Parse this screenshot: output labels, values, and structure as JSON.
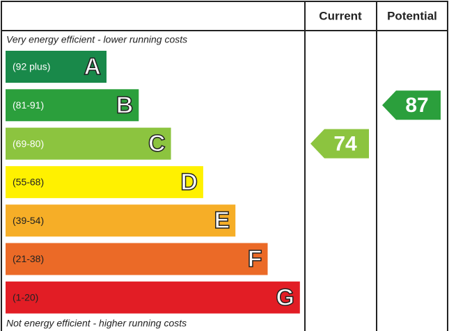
{
  "header": {
    "current": "Current",
    "potential": "Potential"
  },
  "top_note": "Very energy efficient - lower running costs",
  "bottom_note": "Not energy efficient - higher running costs",
  "bands": [
    {
      "range": "(92 plus)",
      "letter": "A",
      "color": "#19894a",
      "text_color": "#ffffff"
    },
    {
      "range": "(81-91)",
      "letter": "B",
      "color": "#2b9f3c",
      "text_color": "#ffffff"
    },
    {
      "range": "(69-80)",
      "letter": "C",
      "color": "#8cc43f",
      "text_color": "#ffffff"
    },
    {
      "range": "(55-68)",
      "letter": "D",
      "color": "#fff100",
      "text_color": "#222222"
    },
    {
      "range": "(39-54)",
      "letter": "E",
      "color": "#f6ae27",
      "text_color": "#222222"
    },
    {
      "range": "(21-38)",
      "letter": "F",
      "color": "#eb6a27",
      "text_color": "#222222"
    },
    {
      "range": "(1-20)",
      "letter": "G",
      "color": "#e21d25",
      "text_color": "#222222"
    }
  ],
  "current": {
    "value": 74,
    "band": 2
  },
  "potential": {
    "value": 87,
    "band": 1
  }
}
